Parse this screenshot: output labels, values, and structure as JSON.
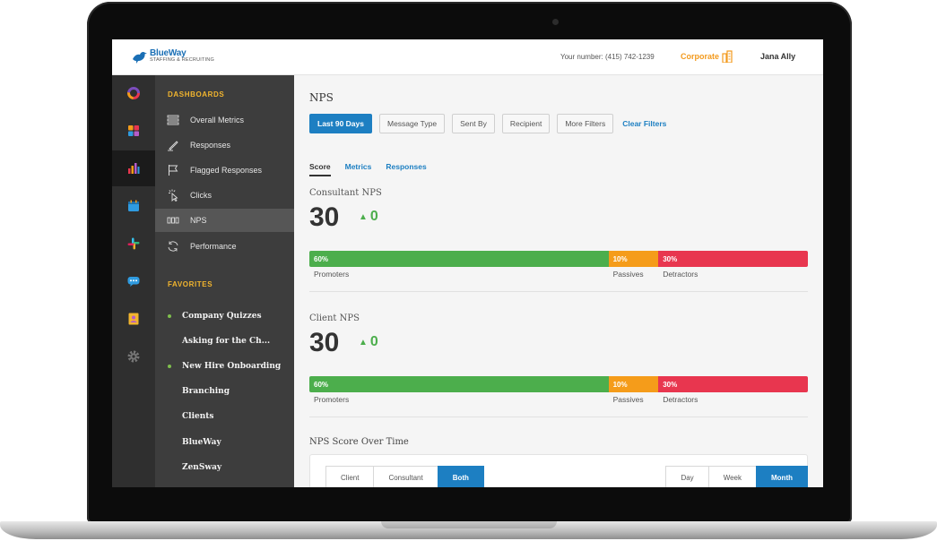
{
  "brand": {
    "name": "BlueWay",
    "tagline": "STAFFING & RECRUITING"
  },
  "header": {
    "phone": "Your number: (415) 742-1239",
    "account": "Corporate",
    "user": "Jana Ally"
  },
  "rail": {
    "icons": [
      "donut-chart-icon",
      "grid-blocks-icon",
      "bar-chart-icon",
      "calendar-icon",
      "slack-icon",
      "chat-icon",
      "contacts-icon",
      "gear-icon"
    ],
    "active": "bar-chart-icon"
  },
  "nav": {
    "dashboards_heading": "DASHBOARDS",
    "items": [
      {
        "label": "Overall Metrics",
        "icon": "list-icon"
      },
      {
        "label": "Responses",
        "icon": "pencil-icon"
      },
      {
        "label": "Flagged Responses",
        "icon": "flag-icon"
      },
      {
        "label": "Clicks",
        "icon": "cursor-click-icon"
      },
      {
        "label": "NPS",
        "icon": "nps-icon",
        "active": true
      },
      {
        "label": "Performance",
        "icon": "refresh-icon"
      }
    ],
    "favorites_heading": "FAVORITES",
    "favorites": [
      {
        "label": "Company Quizzes",
        "dot": true
      },
      {
        "label": "Asking for the Ch...",
        "dot": false
      },
      {
        "label": "New Hire Onboarding",
        "dot": true
      },
      {
        "label": "Branching",
        "dot": false
      },
      {
        "label": "Clients",
        "dot": false
      },
      {
        "label": "BlueWay",
        "dot": false
      },
      {
        "label": "ZenSway",
        "dot": false
      }
    ]
  },
  "main": {
    "title": "NPS",
    "filters": [
      "Last 90 Days",
      "Message Type",
      "Sent By",
      "Recipient",
      "More Filters"
    ],
    "clear_filters": "Clear Filters",
    "tabs": [
      "Score",
      "Metrics",
      "Responses"
    ],
    "active_tab": "Score",
    "sections": [
      {
        "label": "Consultant NPS",
        "score": "30",
        "delta": "0",
        "promoters_pct": 60,
        "passives_pct": 10,
        "detractors_pct": 30,
        "promoters_text": "60%",
        "passives_text": "10%",
        "detractors_text": "30%",
        "promoters_label": "Promoters",
        "passives_label": "Passives",
        "detractors_label": "Detractors"
      },
      {
        "label": "Client NPS",
        "score": "30",
        "delta": "0",
        "promoters_pct": 60,
        "passives_pct": 10,
        "detractors_pct": 30,
        "promoters_text": "60%",
        "passives_text": "10%",
        "detractors_text": "30%",
        "promoters_label": "Promoters",
        "passives_label": "Passives",
        "detractors_label": "Detractors"
      }
    ],
    "over_time": {
      "title": "NPS Score Over Time",
      "audience": [
        "Client",
        "Consultant",
        "Both"
      ],
      "audience_selected": "Both",
      "period": [
        "Day",
        "Week",
        "Month"
      ],
      "period_selected": "Month"
    }
  },
  "colors": {
    "accent": "#1d7fc2",
    "promoters": "#4cae4c",
    "passives": "#f59c1a",
    "detractors": "#e8364f",
    "favorite_dot": "#7fbf4d",
    "section_heading": "#f2b52e",
    "corporate": "#f39a1d"
  }
}
